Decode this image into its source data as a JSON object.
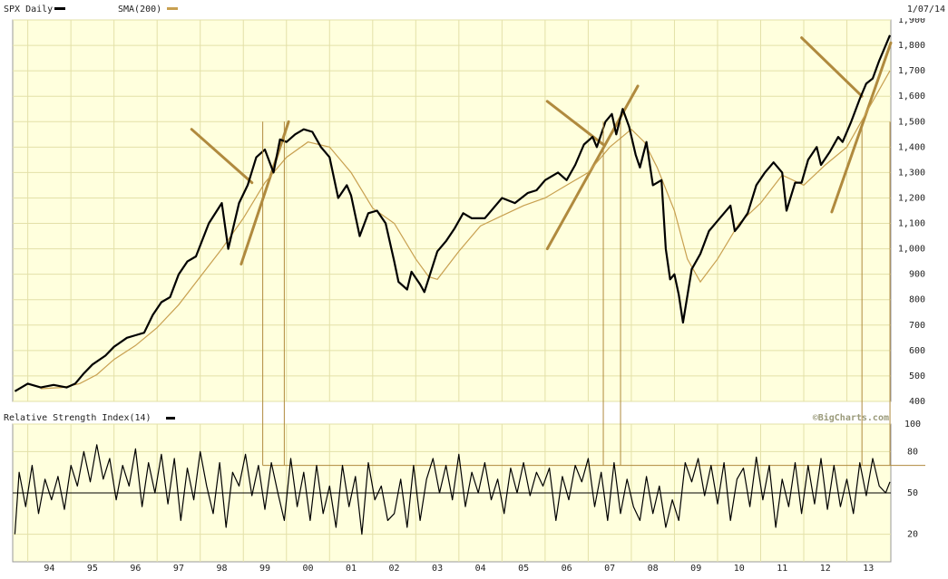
{
  "header": {
    "symbol_label": "SPX Daily",
    "sma_label": "SMA(200)",
    "date_label": "1/07/14"
  },
  "rsi_header": {
    "label": "Relative Strength Index(14)"
  },
  "watermark": "©BigCharts.com",
  "colors": {
    "background": "#ffffdd",
    "grid": "#e3e0a8",
    "price": "#000000",
    "sma": "#c8a050",
    "trendline": "#b08a3e",
    "border": "#999999"
  },
  "chart_data": [
    {
      "type": "line",
      "title": "SPX Daily",
      "ylim": [
        400,
        1900
      ],
      "y_ticks": [
        "400",
        "500",
        "600",
        "700",
        "800",
        "900",
        "1,000",
        "1,100",
        "1,200",
        "1,300",
        "1,400",
        "1,500",
        "1,600",
        "1,700",
        "1,800",
        "1,900"
      ],
      "y_tick_values": [
        400,
        500,
        600,
        700,
        800,
        900,
        1000,
        1100,
        1200,
        1300,
        1400,
        1500,
        1600,
        1700,
        1800,
        1900
      ],
      "x_ticks": [
        "94",
        "95",
        "96",
        "97",
        "98",
        "99",
        "00",
        "01",
        "02",
        "03",
        "04",
        "05",
        "06",
        "07",
        "08",
        "09",
        "10",
        "11",
        "12",
        "13"
      ],
      "x_tick_values": [
        1994,
        1995,
        1996,
        1997,
        1998,
        1999,
        2000,
        2001,
        2002,
        2003,
        2004,
        2005,
        2006,
        2007,
        2008,
        2009,
        2010,
        2011,
        2012,
        2013
      ],
      "xlim": [
        1993.65,
        2014.02
      ],
      "grid": true,
      "legend": "top-left",
      "series": [
        {
          "name": "SPX Daily",
          "x": [
            1993.7,
            1994.0,
            1994.3,
            1994.6,
            1994.9,
            1995.1,
            1995.3,
            1995.5,
            1995.8,
            1996.0,
            1996.3,
            1996.5,
            1996.7,
            1996.9,
            1997.1,
            1997.3,
            1997.5,
            1997.7,
            1997.9,
            1998.2,
            1998.5,
            1998.65,
            1998.9,
            1999.1,
            1999.3,
            1999.5,
            1999.7,
            1999.85,
            2000.0,
            2000.2,
            2000.4,
            2000.6,
            2000.8,
            2001.0,
            2001.2,
            2001.4,
            2001.5,
            2001.7,
            2001.9,
            2002.1,
            2002.3,
            2002.5,
            2002.6,
            2002.8,
            2002.9,
            2003.1,
            2003.2,
            2003.5,
            2003.7,
            2003.9,
            2004.1,
            2004.3,
            2004.6,
            2004.8,
            2005.0,
            2005.3,
            2005.6,
            2005.8,
            2006.0,
            2006.3,
            2006.5,
            2006.7,
            2006.9,
            2007.1,
            2007.2,
            2007.4,
            2007.55,
            2007.65,
            2007.8,
            2007.95,
            2008.1,
            2008.2,
            2008.35,
            2008.5,
            2008.7,
            2008.8,
            2008.9,
            2009.0,
            2009.1,
            2009.2,
            2009.4,
            2009.6,
            2009.8,
            2010.0,
            2010.3,
            2010.4,
            2010.5,
            2010.7,
            2010.9,
            2011.1,
            2011.3,
            2011.5,
            2011.6,
            2011.8,
            2011.95,
            2012.1,
            2012.3,
            2012.4,
            2012.6,
            2012.8,
            2012.9,
            2013.1,
            2013.3,
            2013.45,
            2013.6,
            2013.75,
            2013.9,
            2014.0
          ],
          "y": [
            440,
            470,
            455,
            465,
            455,
            470,
            510,
            545,
            580,
            615,
            650,
            660,
            670,
            740,
            790,
            810,
            900,
            950,
            970,
            1100,
            1180,
            1000,
            1180,
            1250,
            1360,
            1390,
            1300,
            1430,
            1420,
            1450,
            1470,
            1460,
            1400,
            1360,
            1200,
            1250,
            1210,
            1050,
            1140,
            1150,
            1100,
            950,
            870,
            840,
            910,
            860,
            830,
            990,
            1030,
            1080,
            1140,
            1120,
            1120,
            1160,
            1200,
            1180,
            1220,
            1230,
            1270,
            1300,
            1270,
            1330,
            1410,
            1440,
            1400,
            1500,
            1530,
            1450,
            1550,
            1480,
            1370,
            1320,
            1420,
            1250,
            1270,
            1000,
            880,
            900,
            820,
            710,
            920,
            980,
            1070,
            1110,
            1170,
            1070,
            1090,
            1140,
            1250,
            1300,
            1340,
            1300,
            1150,
            1260,
            1260,
            1350,
            1400,
            1330,
            1380,
            1440,
            1420,
            1500,
            1590,
            1650,
            1670,
            1740,
            1800,
            1840
          ]
        },
        {
          "name": "SMA(200)",
          "x": [
            1994.3,
            1994.8,
            1995.2,
            1995.6,
            1996.0,
            1996.5,
            1997.0,
            1997.5,
            1998.0,
            1998.5,
            1999.0,
            1999.5,
            2000.0,
            2000.5,
            2001.0,
            2001.5,
            2002.0,
            2002.5,
            2003.0,
            2003.3,
            2003.5,
            2004.0,
            2004.5,
            2005.0,
            2005.5,
            2006.0,
            2006.5,
            2007.0,
            2007.5,
            2008.0,
            2008.3,
            2008.6,
            2009.0,
            2009.3,
            2009.6,
            2010.0,
            2010.5,
            2011.0,
            2011.5,
            2012.0,
            2012.5,
            2013.0,
            2013.5,
            2014.0
          ],
          "y": [
            450,
            455,
            470,
            505,
            565,
            620,
            690,
            780,
            890,
            1000,
            1120,
            1260,
            1360,
            1420,
            1400,
            1300,
            1160,
            1100,
            960,
            890,
            880,
            990,
            1090,
            1130,
            1170,
            1200,
            1250,
            1300,
            1400,
            1470,
            1420,
            1320,
            1150,
            960,
            870,
            960,
            1100,
            1180,
            1290,
            1250,
            1330,
            1400,
            1550,
            1700
          ]
        }
      ]
    },
    {
      "type": "line",
      "title": "Relative Strength Index(14)",
      "ylim": [
        0,
        100
      ],
      "y_ticks": [
        "20",
        "50",
        "80",
        "100"
      ],
      "y_tick_values": [
        20,
        50,
        80,
        100
      ],
      "grid": true,
      "legend": "top-left",
      "reference_lines": [
        50,
        70
      ],
      "series": [
        {
          "name": "Relative Strength Index(14)",
          "x": [
            1993.7,
            1993.8,
            1993.95,
            1994.1,
            1994.25,
            1994.4,
            1994.55,
            1994.7,
            1994.85,
            1995.0,
            1995.15,
            1995.3,
            1995.45,
            1995.6,
            1995.75,
            1995.9,
            1996.05,
            1996.2,
            1996.35,
            1996.5,
            1996.65,
            1996.8,
            1996.95,
            1997.1,
            1997.25,
            1997.4,
            1997.55,
            1997.7,
            1997.85,
            1998.0,
            1998.15,
            1998.3,
            1998.45,
            1998.6,
            1998.75,
            1998.9,
            1999.05,
            1999.2,
            1999.35,
            1999.5,
            1999.65,
            1999.8,
            1999.95,
            2000.1,
            2000.25,
            2000.4,
            2000.55,
            2000.7,
            2000.85,
            2001.0,
            2001.15,
            2001.3,
            2001.45,
            2001.6,
            2001.75,
            2001.9,
            2002.05,
            2002.2,
            2002.35,
            2002.5,
            2002.65,
            2002.8,
            2002.95,
            2003.1,
            2003.25,
            2003.4,
            2003.55,
            2003.7,
            2003.85,
            2004.0,
            2004.15,
            2004.3,
            2004.45,
            2004.6,
            2004.75,
            2004.9,
            2005.05,
            2005.2,
            2005.35,
            2005.5,
            2005.65,
            2005.8,
            2005.95,
            2006.1,
            2006.25,
            2006.4,
            2006.55,
            2006.7,
            2006.85,
            2007.0,
            2007.15,
            2007.3,
            2007.45,
            2007.6,
            2007.75,
            2007.9,
            2008.05,
            2008.2,
            2008.35,
            2008.5,
            2008.65,
            2008.8,
            2008.95,
            2009.1,
            2009.25,
            2009.4,
            2009.55,
            2009.7,
            2009.85,
            2010.0,
            2010.15,
            2010.3,
            2010.45,
            2010.6,
            2010.75,
            2010.9,
            2011.05,
            2011.2,
            2011.35,
            2011.5,
            2011.65,
            2011.8,
            2011.95,
            2012.1,
            2012.25,
            2012.4,
            2012.55,
            2012.7,
            2012.85,
            2013.0,
            2013.15,
            2013.3,
            2013.45,
            2013.6,
            2013.75,
            2013.9,
            2014.0
          ],
          "y": [
            20,
            65,
            40,
            70,
            35,
            60,
            45,
            62,
            38,
            70,
            55,
            80,
            58,
            85,
            60,
            75,
            45,
            70,
            55,
            82,
            40,
            72,
            50,
            78,
            42,
            75,
            30,
            68,
            45,
            80,
            55,
            35,
            72,
            25,
            65,
            55,
            78,
            48,
            70,
            38,
            72,
            50,
            30,
            75,
            40,
            65,
            30,
            70,
            35,
            55,
            25,
            70,
            40,
            62,
            20,
            72,
            45,
            55,
            30,
            35,
            60,
            25,
            70,
            30,
            60,
            75,
            50,
            70,
            45,
            78,
            40,
            65,
            50,
            72,
            45,
            60,
            35,
            68,
            50,
            72,
            48,
            65,
            55,
            68,
            30,
            62,
            45,
            70,
            58,
            75,
            40,
            65,
            30,
            72,
            35,
            60,
            40,
            30,
            62,
            35,
            55,
            25,
            45,
            30,
            72,
            58,
            75,
            48,
            70,
            42,
            72,
            30,
            60,
            68,
            40,
            76,
            45,
            70,
            25,
            60,
            40,
            72,
            35,
            70,
            42,
            75,
            38,
            70,
            40,
            60,
            35,
            72,
            48,
            75,
            55,
            50,
            58
          ]
        }
      ]
    }
  ]
}
